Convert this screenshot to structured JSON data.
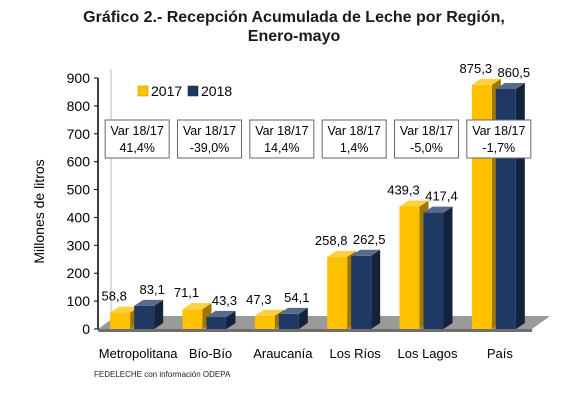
{
  "chart_data": {
    "type": "bar",
    "title_lines": [
      "Gráfico 2.- Recepción Acumulada de Leche por Región,",
      "Enero-mayo"
    ],
    "ylabel": "Millones de litros",
    "xlabel": "",
    "ylim": [
      0,
      900
    ],
    "yticks": [
      0,
      100,
      200,
      300,
      400,
      500,
      600,
      700,
      800,
      900
    ],
    "categories": [
      "Metropolitana",
      "Bío-Bío",
      "Araucanía",
      "Los Ríos",
      "Los Lagos",
      "País"
    ],
    "series": [
      {
        "name": "2017",
        "color": "#FFC000",
        "values": [
          58.8,
          71.1,
          47.3,
          258.8,
          439.3,
          875.3
        ],
        "labels": [
          "58,8",
          "71,1",
          "47,3",
          "258,8",
          "439,3",
          "875,3"
        ]
      },
      {
        "name": "2018",
        "color": "#1F3864",
        "values": [
          83.1,
          43.3,
          54.1,
          262.5,
          417.4,
          860.5
        ],
        "labels": [
          "83,1",
          "43,3",
          "54,1",
          "262,5",
          "417,4",
          "860,5"
        ]
      }
    ],
    "annotations": [
      {
        "line1": "Var 18/17",
        "line2": "41,4%"
      },
      {
        "line1": "Var 18/17",
        "line2": "-39,0%"
      },
      {
        "line1": "Var 18/17",
        "line2": "14,4%"
      },
      {
        "line1": "Var 18/17",
        "line2": "1,4%"
      },
      {
        "line1": "Var 18/17",
        "line2": "-5,0%"
      },
      {
        "line1": "Var 18/17",
        "line2": "-1,7%"
      }
    ],
    "legend_position": "top-left",
    "grid": false
  },
  "source": "FEDELECHE con información ODEPA"
}
